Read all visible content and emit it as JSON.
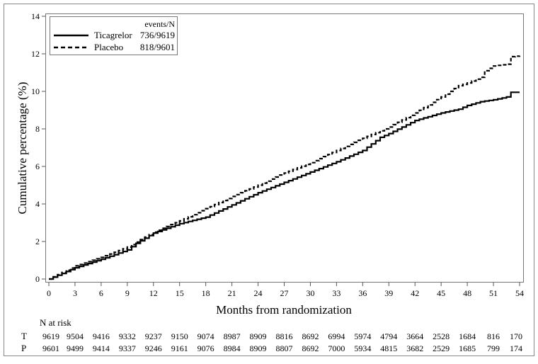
{
  "chart_data": {
    "type": "line",
    "step": true,
    "xlabel": "Months from randomization",
    "ylabel": "Cumulative percentage (%)",
    "xlim": [
      0,
      54
    ],
    "ylim": [
      0,
      14
    ],
    "xticks": [
      0,
      3,
      6,
      9,
      12,
      15,
      18,
      21,
      24,
      27,
      30,
      33,
      36,
      39,
      42,
      45,
      48,
      51,
      54
    ],
    "yticks": [
      0,
      2,
      4,
      6,
      8,
      10,
      12,
      14
    ],
    "grid": false,
    "legend": {
      "placement": "top-left",
      "header": "events/N",
      "entries": [
        {
          "name": "Ticagrelor",
          "events": "736/9619",
          "style": "solid"
        },
        {
          "name": "Placebo",
          "events": "818/9601",
          "style": "dashed"
        }
      ]
    },
    "series": [
      {
        "name": "Ticagrelor",
        "style": "solid",
        "color": "#000000",
        "x": [
          0,
          3,
          6,
          9,
          10,
          12,
          15,
          18,
          21,
          24,
          27,
          30,
          33,
          36,
          38,
          39,
          42,
          45,
          47,
          48,
          49.5,
          51,
          52.5,
          53,
          54
        ],
        "y": [
          0,
          0.6,
          1.05,
          1.55,
          1.9,
          2.45,
          2.95,
          3.3,
          3.95,
          4.6,
          5.15,
          5.7,
          6.25,
          6.85,
          7.55,
          7.75,
          8.45,
          8.85,
          9.05,
          9.25,
          9.45,
          9.55,
          9.7,
          9.95,
          9.95
        ]
      },
      {
        "name": "Placebo",
        "style": "dashed",
        "color": "#000000",
        "x": [
          0,
          3,
          6,
          9,
          12,
          15,
          18,
          21,
          24,
          27,
          30,
          33,
          36,
          39,
          42,
          45,
          47,
          48,
          49.5,
          50,
          51,
          52.5,
          53,
          54
        ],
        "y": [
          0,
          0.7,
          1.15,
          1.7,
          2.5,
          3.1,
          3.75,
          4.4,
          5.0,
          5.65,
          6.2,
          6.85,
          7.5,
          8.1,
          8.85,
          9.7,
          10.3,
          10.45,
          10.75,
          11.1,
          11.35,
          11.45,
          11.85,
          11.9
        ]
      }
    ],
    "risk_table": {
      "title": "N at risk",
      "rows": [
        {
          "label": "T",
          "values": [
            "9619",
            "9504",
            "9416",
            "9332",
            "9237",
            "9150",
            "9074",
            "8987",
            "8909",
            "8816",
            "8692",
            "6994",
            "5974",
            "4794",
            "3664",
            "2528",
            "1684",
            "816",
            "170"
          ]
        },
        {
          "label": "P",
          "values": [
            "9601",
            "9499",
            "9414",
            "9337",
            "9246",
            "9161",
            "9076",
            "8984",
            "8909",
            "8807",
            "8692",
            "7000",
            "5934",
            "4815",
            "3682",
            "2529",
            "1685",
            "799",
            "174"
          ]
        }
      ]
    }
  }
}
